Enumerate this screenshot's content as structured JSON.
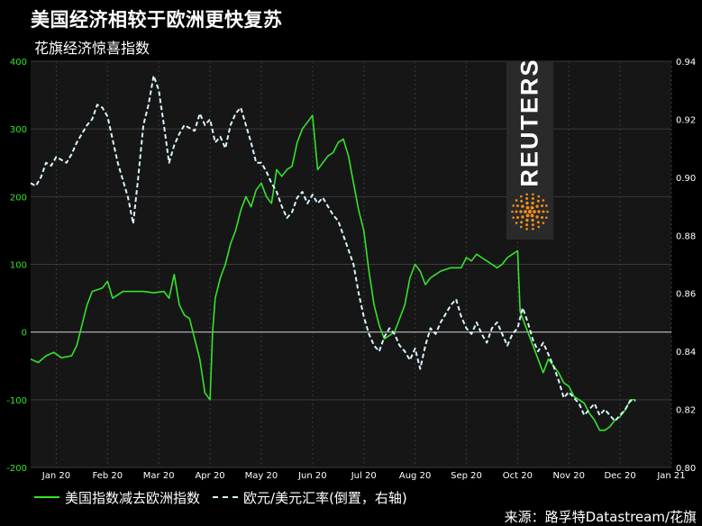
{
  "title": "美国经济相较于欧洲更快复苏",
  "subtitle": "花旗经济惊喜指数",
  "logo_text": "REUTERS",
  "source": "来源：路孚特Datastream/花旗",
  "colors": {
    "background": "#000000",
    "plot_bg": "#161616",
    "grid": "#3a3a3a",
    "zero_line": "#bdbdbd",
    "green": "#35e32b",
    "dashed": "#d8f4ff",
    "logo_orange": "#f28c1c",
    "left_tick": "#35e32b",
    "right_tick": "#ffffff"
  },
  "chart_data": {
    "type": "line",
    "title": "美国经济相较于欧洲更快复苏",
    "subtitle": "花旗经济惊喜指数",
    "x_tick_labels": [
      "Jan 20",
      "Feb 20",
      "Mar 20",
      "Apr 20",
      "May 20",
      "Jun 20",
      "Jul 20",
      "Aug 20",
      "Sep 20",
      "Oct 20",
      "Nov 20",
      "Dec 20",
      "Jan 21"
    ],
    "x_month_range": [
      0,
      12.5
    ],
    "y_left": {
      "min": -200,
      "max": 400,
      "ticks": [
        "-200",
        "-100",
        "0",
        "100",
        "200",
        "300",
        "400"
      ]
    },
    "y_right": {
      "min": 0.8,
      "max": 0.94,
      "inverted": false,
      "ticks": [
        "0.80",
        "0.82",
        "0.84",
        "0.86",
        "0.88",
        "0.90",
        "0.92",
        "0.94"
      ]
    },
    "legend_position": "bottom-left",
    "grid": true,
    "series": [
      {
        "name": "美国指数减去欧洲指数",
        "axis": "left",
        "style": "solid",
        "color": "#35e32b",
        "points": [
          [
            0.0,
            -40
          ],
          [
            0.15,
            -45
          ],
          [
            0.3,
            -35
          ],
          [
            0.45,
            -30
          ],
          [
            0.6,
            -38
          ],
          [
            0.8,
            -35
          ],
          [
            0.9,
            -20
          ],
          [
            1.0,
            10
          ],
          [
            1.1,
            40
          ],
          [
            1.2,
            60
          ],
          [
            1.4,
            65
          ],
          [
            1.5,
            75
          ],
          [
            1.6,
            50
          ],
          [
            1.7,
            55
          ],
          [
            1.8,
            60
          ],
          [
            2.0,
            60
          ],
          [
            2.2,
            60
          ],
          [
            2.4,
            58
          ],
          [
            2.6,
            60
          ],
          [
            2.7,
            50
          ],
          [
            2.8,
            85
          ],
          [
            2.9,
            40
          ],
          [
            3.0,
            25
          ],
          [
            3.1,
            20
          ],
          [
            3.2,
            -10
          ],
          [
            3.3,
            -40
          ],
          [
            3.4,
            -90
          ],
          [
            3.5,
            -100
          ],
          [
            3.55,
            0
          ],
          [
            3.6,
            50
          ],
          [
            3.7,
            80
          ],
          [
            3.8,
            100
          ],
          [
            3.9,
            130
          ],
          [
            4.0,
            150
          ],
          [
            4.1,
            180
          ],
          [
            4.2,
            200
          ],
          [
            4.3,
            185
          ],
          [
            4.4,
            210
          ],
          [
            4.5,
            220
          ],
          [
            4.6,
            200
          ],
          [
            4.7,
            190
          ],
          [
            4.8,
            240
          ],
          [
            4.9,
            230
          ],
          [
            5.0,
            240
          ],
          [
            5.1,
            245
          ],
          [
            5.2,
            280
          ],
          [
            5.3,
            300
          ],
          [
            5.4,
            310
          ],
          [
            5.5,
            320
          ],
          [
            5.6,
            240
          ],
          [
            5.7,
            250
          ],
          [
            5.8,
            260
          ],
          [
            5.9,
            265
          ],
          [
            6.0,
            280
          ],
          [
            6.1,
            285
          ],
          [
            6.2,
            260
          ],
          [
            6.3,
            220
          ],
          [
            6.4,
            180
          ],
          [
            6.5,
            150
          ],
          [
            6.6,
            90
          ],
          [
            6.7,
            40
          ],
          [
            6.8,
            10
          ],
          [
            6.9,
            -10
          ],
          [
            7.0,
            -5
          ],
          [
            7.1,
            0
          ],
          [
            7.2,
            20
          ],
          [
            7.3,
            40
          ],
          [
            7.4,
            80
          ],
          [
            7.5,
            100
          ],
          [
            7.6,
            90
          ],
          [
            7.7,
            70
          ],
          [
            7.8,
            80
          ],
          [
            7.9,
            85
          ],
          [
            8.0,
            90
          ],
          [
            8.2,
            95
          ],
          [
            8.4,
            95
          ],
          [
            8.5,
            110
          ],
          [
            8.6,
            105
          ],
          [
            8.7,
            115
          ],
          [
            8.8,
            110
          ],
          [
            8.9,
            105
          ],
          [
            9.0,
            100
          ],
          [
            9.1,
            95
          ],
          [
            9.2,
            100
          ],
          [
            9.3,
            110
          ],
          [
            9.4,
            115
          ],
          [
            9.5,
            120
          ],
          [
            9.55,
            30
          ],
          [
            9.6,
            20
          ],
          [
            9.7,
            0
          ],
          [
            9.8,
            -20
          ],
          [
            9.9,
            -40
          ],
          [
            10.0,
            -60
          ],
          [
            10.1,
            -40
          ],
          [
            10.2,
            -50
          ],
          [
            10.3,
            -60
          ],
          [
            10.4,
            -75
          ],
          [
            10.5,
            -80
          ],
          [
            10.6,
            -95
          ],
          [
            10.7,
            -100
          ],
          [
            10.8,
            -105
          ],
          [
            10.9,
            -120
          ],
          [
            11.0,
            -130
          ],
          [
            11.1,
            -145
          ],
          [
            11.2,
            -145
          ],
          [
            11.3,
            -140
          ],
          [
            11.4,
            -130
          ],
          [
            11.5,
            -125
          ],
          [
            11.6,
            -115
          ],
          [
            11.7,
            -100
          ],
          [
            11.8,
            -100
          ]
        ]
      },
      {
        "name": "欧元/美元汇率(倒置，右轴)",
        "axis": "right",
        "style": "dashed",
        "color": "#d8f4ff",
        "points": [
          [
            0.0,
            0.898
          ],
          [
            0.1,
            0.897
          ],
          [
            0.2,
            0.9
          ],
          [
            0.3,
            0.905
          ],
          [
            0.4,
            0.904
          ],
          [
            0.5,
            0.907
          ],
          [
            0.6,
            0.906
          ],
          [
            0.7,
            0.905
          ],
          [
            0.8,
            0.908
          ],
          [
            0.9,
            0.912
          ],
          [
            1.0,
            0.915
          ],
          [
            1.1,
            0.918
          ],
          [
            1.2,
            0.92
          ],
          [
            1.3,
            0.925
          ],
          [
            1.4,
            0.924
          ],
          [
            1.5,
            0.921
          ],
          [
            1.6,
            0.913
          ],
          [
            1.7,
            0.905
          ],
          [
            1.8,
            0.899
          ],
          [
            1.9,
            0.893
          ],
          [
            2.0,
            0.884
          ],
          [
            2.1,
            0.9
          ],
          [
            2.2,
            0.918
          ],
          [
            2.3,
            0.925
          ],
          [
            2.4,
            0.935
          ],
          [
            2.5,
            0.93
          ],
          [
            2.6,
            0.918
          ],
          [
            2.7,
            0.905
          ],
          [
            2.8,
            0.911
          ],
          [
            2.9,
            0.915
          ],
          [
            3.0,
            0.918
          ],
          [
            3.1,
            0.917
          ],
          [
            3.2,
            0.916
          ],
          [
            3.3,
            0.922
          ],
          [
            3.4,
            0.918
          ],
          [
            3.5,
            0.92
          ],
          [
            3.6,
            0.912
          ],
          [
            3.7,
            0.914
          ],
          [
            3.8,
            0.91
          ],
          [
            3.9,
            0.918
          ],
          [
            4.0,
            0.922
          ],
          [
            4.1,
            0.924
          ],
          [
            4.2,
            0.918
          ],
          [
            4.3,
            0.912
          ],
          [
            4.4,
            0.905
          ],
          [
            4.5,
            0.905
          ],
          [
            4.6,
            0.902
          ],
          [
            4.7,
            0.898
          ],
          [
            4.8,
            0.895
          ],
          [
            4.9,
            0.89
          ],
          [
            5.0,
            0.886
          ],
          [
            5.1,
            0.888
          ],
          [
            5.2,
            0.893
          ],
          [
            5.3,
            0.895
          ],
          [
            5.4,
            0.891
          ],
          [
            5.5,
            0.894
          ],
          [
            5.6,
            0.891
          ],
          [
            5.7,
            0.893
          ],
          [
            5.8,
            0.89
          ],
          [
            5.9,
            0.887
          ],
          [
            6.0,
            0.885
          ],
          [
            6.1,
            0.88
          ],
          [
            6.2,
            0.875
          ],
          [
            6.3,
            0.87
          ],
          [
            6.4,
            0.86
          ],
          [
            6.5,
            0.852
          ],
          [
            6.6,
            0.846
          ],
          [
            6.7,
            0.842
          ],
          [
            6.8,
            0.84
          ],
          [
            6.9,
            0.845
          ],
          [
            7.0,
            0.848
          ],
          [
            7.1,
            0.846
          ],
          [
            7.2,
            0.842
          ],
          [
            7.3,
            0.84
          ],
          [
            7.4,
            0.837
          ],
          [
            7.5,
            0.841
          ],
          [
            7.6,
            0.834
          ],
          [
            7.7,
            0.842
          ],
          [
            7.8,
            0.848
          ],
          [
            7.9,
            0.846
          ],
          [
            8.0,
            0.85
          ],
          [
            8.1,
            0.853
          ],
          [
            8.2,
            0.856
          ],
          [
            8.3,
            0.858
          ],
          [
            8.4,
            0.852
          ],
          [
            8.5,
            0.848
          ],
          [
            8.6,
            0.846
          ],
          [
            8.7,
            0.85
          ],
          [
            8.8,
            0.846
          ],
          [
            8.9,
            0.843
          ],
          [
            9.0,
            0.848
          ],
          [
            9.1,
            0.85
          ],
          [
            9.2,
            0.846
          ],
          [
            9.3,
            0.842
          ],
          [
            9.4,
            0.846
          ],
          [
            9.5,
            0.848
          ],
          [
            9.6,
            0.855
          ],
          [
            9.7,
            0.85
          ],
          [
            9.8,
            0.844
          ],
          [
            9.9,
            0.84
          ],
          [
            10.0,
            0.843
          ],
          [
            10.1,
            0.839
          ],
          [
            10.2,
            0.835
          ],
          [
            10.3,
            0.83
          ],
          [
            10.4,
            0.824
          ],
          [
            10.5,
            0.826
          ],
          [
            10.6,
            0.824
          ],
          [
            10.7,
            0.822
          ],
          [
            10.8,
            0.818
          ],
          [
            10.9,
            0.82
          ],
          [
            11.0,
            0.822
          ],
          [
            11.1,
            0.818
          ],
          [
            11.2,
            0.82
          ],
          [
            11.3,
            0.818
          ],
          [
            11.4,
            0.816
          ],
          [
            11.5,
            0.818
          ],
          [
            11.6,
            0.82
          ],
          [
            11.7,
            0.823
          ],
          [
            11.8,
            0.823
          ]
        ]
      }
    ]
  }
}
